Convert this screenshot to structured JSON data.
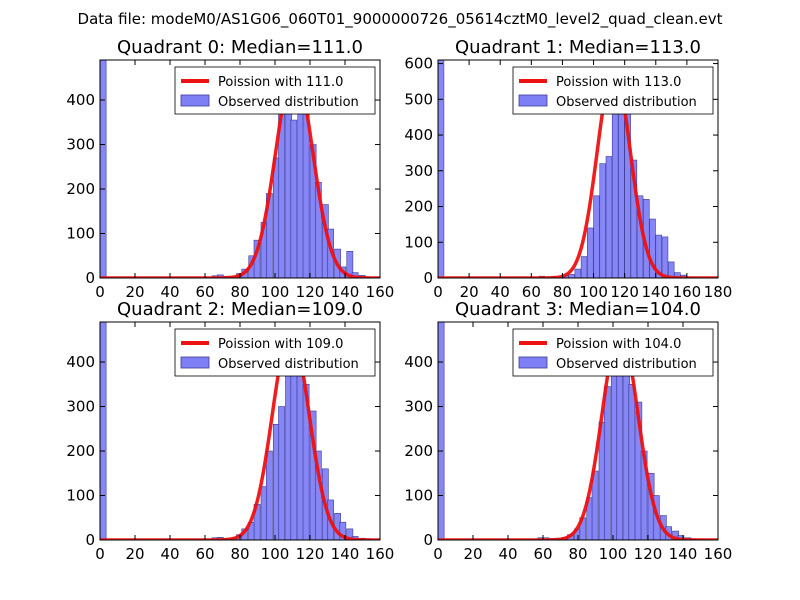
{
  "figure": {
    "suptitle": "Data file: modeM0/AS1G06_060T01_9000000726_05614cztM0_level2_quad_clean.evt"
  },
  "colors": {
    "bar_fill": "#7f7ff5",
    "bar_edge": "#3b3b96",
    "poisson_line": "#ee1111",
    "axes": "#000000"
  },
  "chart_data": [
    {
      "type": "bar",
      "title": "Quadrant 0: Median=111.0",
      "xlim": [
        0,
        160
      ],
      "ylim": [
        0,
        490
      ],
      "xticks": [
        0,
        20,
        40,
        60,
        80,
        100,
        120,
        140,
        160
      ],
      "yticks": [
        0,
        100,
        200,
        300,
        400
      ],
      "bin_width": 3.5,
      "bins": [
        [
          0,
          490
        ],
        [
          64,
          5
        ],
        [
          67,
          7
        ],
        [
          71,
          4
        ],
        [
          74,
          4
        ],
        [
          78,
          10
        ],
        [
          81,
          20
        ],
        [
          85,
          50
        ],
        [
          88,
          85
        ],
        [
          92,
          125
        ],
        [
          95,
          190
        ],
        [
          99,
          270
        ],
        [
          102,
          375
        ],
        [
          106,
          420
        ],
        [
          109,
          355
        ],
        [
          113,
          410
        ],
        [
          116,
          390
        ],
        [
          120,
          300
        ],
        [
          123,
          215
        ],
        [
          127,
          165
        ],
        [
          130,
          110
        ],
        [
          134,
          65
        ],
        [
          137,
          25
        ],
        [
          141,
          60
        ],
        [
          144,
          12
        ],
        [
          148,
          6
        ],
        [
          151,
          2
        ]
      ],
      "legend": [
        "Poission with 111.0",
        "Observed distribution"
      ],
      "poisson": {
        "mean": 111.0,
        "peak": 470
      }
    },
    {
      "type": "bar",
      "title": "Quadrant 1: Median=113.0",
      "xlim": [
        0,
        180
      ],
      "ylim": [
        0,
        610
      ],
      "xticks": [
        0,
        20,
        40,
        60,
        80,
        100,
        120,
        140,
        160,
        180
      ],
      "yticks": [
        0,
        100,
        200,
        300,
        400,
        500,
        600
      ],
      "bin_width": 3.8,
      "bins": [
        [
          0,
          610
        ],
        [
          65,
          5
        ],
        [
          72,
          4
        ],
        [
          80,
          6
        ],
        [
          84,
          10
        ],
        [
          88,
          25
        ],
        [
          92,
          60
        ],
        [
          96,
          140
        ],
        [
          100,
          230
        ],
        [
          104,
          320
        ],
        [
          108,
          340
        ],
        [
          112,
          490
        ],
        [
          116,
          560
        ],
        [
          120,
          480
        ],
        [
          124,
          330
        ],
        [
          128,
          230
        ],
        [
          132,
          220
        ],
        [
          136,
          165
        ],
        [
          140,
          120
        ],
        [
          144,
          115
        ],
        [
          148,
          45
        ],
        [
          152,
          15
        ],
        [
          156,
          8
        ],
        [
          160,
          3
        ]
      ],
      "legend": [
        "Poission with 113.0",
        "Observed distribution"
      ],
      "poisson": {
        "mean": 113.0,
        "peak": 585
      }
    },
    {
      "type": "bar",
      "title": "Quadrant 2: Median=109.0",
      "xlim": [
        0,
        160
      ],
      "ylim": [
        0,
        490
      ],
      "xticks": [
        0,
        20,
        40,
        60,
        80,
        100,
        120,
        140,
        160
      ],
      "yticks": [
        0,
        100,
        200,
        300,
        400
      ],
      "bin_width": 3.5,
      "bins": [
        [
          0,
          490
        ],
        [
          64,
          5
        ],
        [
          67,
          6
        ],
        [
          71,
          4
        ],
        [
          74,
          5
        ],
        [
          78,
          12
        ],
        [
          81,
          25
        ],
        [
          85,
          40
        ],
        [
          88,
          80
        ],
        [
          92,
          120
        ],
        [
          95,
          200
        ],
        [
          99,
          260
        ],
        [
          102,
          300
        ],
        [
          106,
          400
        ],
        [
          109,
          385
        ],
        [
          113,
          370
        ],
        [
          116,
          350
        ],
        [
          120,
          290
        ],
        [
          123,
          200
        ],
        [
          127,
          160
        ],
        [
          130,
          90
        ],
        [
          134,
          60
        ],
        [
          137,
          40
        ],
        [
          141,
          25
        ],
        [
          144,
          8
        ],
        [
          148,
          4
        ],
        [
          151,
          3
        ]
      ],
      "legend": [
        "Poission with 109.0",
        "Observed distribution"
      ],
      "poisson": {
        "mean": 109.0,
        "peak": 470
      }
    },
    {
      "type": "bar",
      "title": "Quadrant 3: Median=104.0",
      "xlim": [
        0,
        160
      ],
      "ylim": [
        0,
        490
      ],
      "xticks": [
        0,
        20,
        40,
        60,
        80,
        100,
        120,
        140,
        160
      ],
      "yticks": [
        0,
        100,
        200,
        300,
        400
      ],
      "bin_width": 3.5,
      "bins": [
        [
          0,
          490
        ],
        [
          57,
          5
        ],
        [
          60,
          5
        ],
        [
          64,
          3
        ],
        [
          67,
          4
        ],
        [
          71,
          6
        ],
        [
          74,
          12
        ],
        [
          78,
          25
        ],
        [
          81,
          50
        ],
        [
          85,
          95
        ],
        [
          88,
          155
        ],
        [
          92,
          265
        ],
        [
          95,
          345
        ],
        [
          99,
          380
        ],
        [
          102,
          450
        ],
        [
          106,
          420
        ],
        [
          109,
          350
        ],
        [
          113,
          310
        ],
        [
          116,
          200
        ],
        [
          120,
          150
        ],
        [
          123,
          100
        ],
        [
          127,
          55
        ],
        [
          130,
          30
        ],
        [
          134,
          20
        ],
        [
          137,
          10
        ],
        [
          141,
          5
        ],
        [
          144,
          3
        ]
      ],
      "legend": [
        "Poission with 104.0",
        "Observed distribution"
      ],
      "poisson": {
        "mean": 104.0,
        "peak": 470
      }
    }
  ]
}
